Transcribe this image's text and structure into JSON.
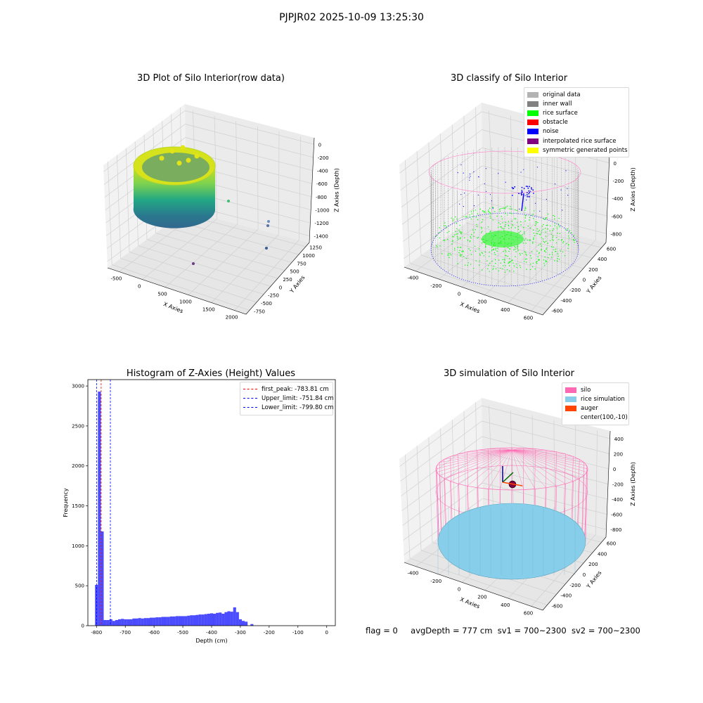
{
  "figure_title": "PJPJR02 2025-10-09 13:25:30",
  "footer": {
    "flag": "flag = 0",
    "avg_depth": "avgDepth = 777 cm",
    "sv1": "sv1 = 700~2300",
    "sv2": "sv2 = 700~2300"
  },
  "chart_data": [
    {
      "type": "scatter",
      "title": "3D Plot of Silo Interior(row data)",
      "xlabel": "X Axies",
      "ylabel": "Y Axies",
      "zlabel": "Z Axies (Depth)",
      "x_ticks": [
        "-500",
        "0",
        "500",
        "1000",
        "1500",
        "2000"
      ],
      "y_ticks": [
        "-750",
        "-500",
        "-250",
        "0",
        "250",
        "500",
        "750",
        "1000",
        "1250"
      ],
      "z_ticks": [
        "-1400",
        "-1200",
        "-1000",
        "-800",
        "-600",
        "-400",
        "-200",
        "0"
      ],
      "colormap": "viridis"
    },
    {
      "type": "scatter",
      "title": "3D classify of Silo Interior",
      "xlabel": "X Axies",
      "ylabel": "Y Axies",
      "zlabel": "Z Axies (Depth)",
      "x_ticks": [
        "-400",
        "-200",
        "0",
        "200",
        "400",
        "600"
      ],
      "y_ticks": [
        "-600",
        "-400",
        "-200",
        "0",
        "200",
        "400",
        "600"
      ],
      "z_ticks": [
        "-800",
        "-600",
        "-400",
        "-200",
        "0",
        "200"
      ],
      "legend_position": "top-right",
      "legend": [
        {
          "label": "original data",
          "color": "#b3b3b3"
        },
        {
          "label": "inner wall",
          "color": "#808080"
        },
        {
          "label": "rice surface",
          "color": "#00ff00"
        },
        {
          "label": "obstacle",
          "color": "#ff0000"
        },
        {
          "label": "noise",
          "color": "#0000ff"
        },
        {
          "label": "interpolated rice surface",
          "color": "#800080"
        },
        {
          "label": "symmetric generated points",
          "color": "#ffff00"
        }
      ]
    },
    {
      "type": "bar",
      "title": "Histogram of Z-Axies (Height) Values",
      "xlabel": "Depth (cm)",
      "ylabel": "Frequency",
      "bar_color": "#0000ff",
      "bin_width": 10,
      "bin_start": -805,
      "values": [
        510,
        2930,
        1180,
        70,
        70,
        80,
        60,
        70,
        80,
        85,
        80,
        80,
        80,
        90,
        90,
        95,
        90,
        95,
        95,
        100,
        100,
        105,
        105,
        110,
        110,
        110,
        115,
        115,
        120,
        120,
        120,
        120,
        125,
        130,
        130,
        135,
        140,
        140,
        145,
        150,
        155,
        150,
        160,
        165,
        150,
        170,
        180,
        175,
        230,
        170,
        80,
        60,
        50,
        0,
        20,
        0
      ],
      "x_ticks": [
        "-800",
        "-700",
        "-600",
        "-500",
        "-400",
        "-300",
        "-200",
        "-100",
        "0"
      ],
      "y_ticks": [
        "0",
        "500",
        "1000",
        "1500",
        "2000",
        "2500",
        "3000"
      ],
      "xlim": [
        -830,
        30
      ],
      "ylim": [
        0,
        3080
      ],
      "vlines": [
        {
          "label": "first_peak: -783.81 cm",
          "x": -783.81,
          "color": "#ff0000"
        },
        {
          "label": "Upper_limit: -751.84 cm",
          "x": -751.84,
          "color": "#0000ff"
        },
        {
          "label": "Lower_limit: -799.80 cm",
          "x": -799.8,
          "color": "#0000ff"
        }
      ],
      "legend_position": "top-right"
    },
    {
      "type": "surface",
      "title": "3D simulation of Silo Interior",
      "xlabel": "X Axies",
      "ylabel": "Y Axies",
      "zlabel": "Z Axies (Depth)",
      "x_ticks": [
        "-400",
        "-200",
        "0",
        "200",
        "400",
        "600"
      ],
      "y_ticks": [
        "-600",
        "-400",
        "-200",
        "0",
        "200",
        "400",
        "600"
      ],
      "z_ticks": [
        "-800",
        "-600",
        "-400",
        "-200",
        "0",
        "200",
        "400"
      ],
      "legend_position": "top-right",
      "legend": [
        {
          "label": "silo",
          "color": "#ff69b4"
        },
        {
          "label": "rice simulation",
          "color": "#87ceeb"
        },
        {
          "label": "auger",
          "color": "#ff4500"
        },
        {
          "label": "center(100,-10)",
          "color": ""
        }
      ]
    }
  ]
}
